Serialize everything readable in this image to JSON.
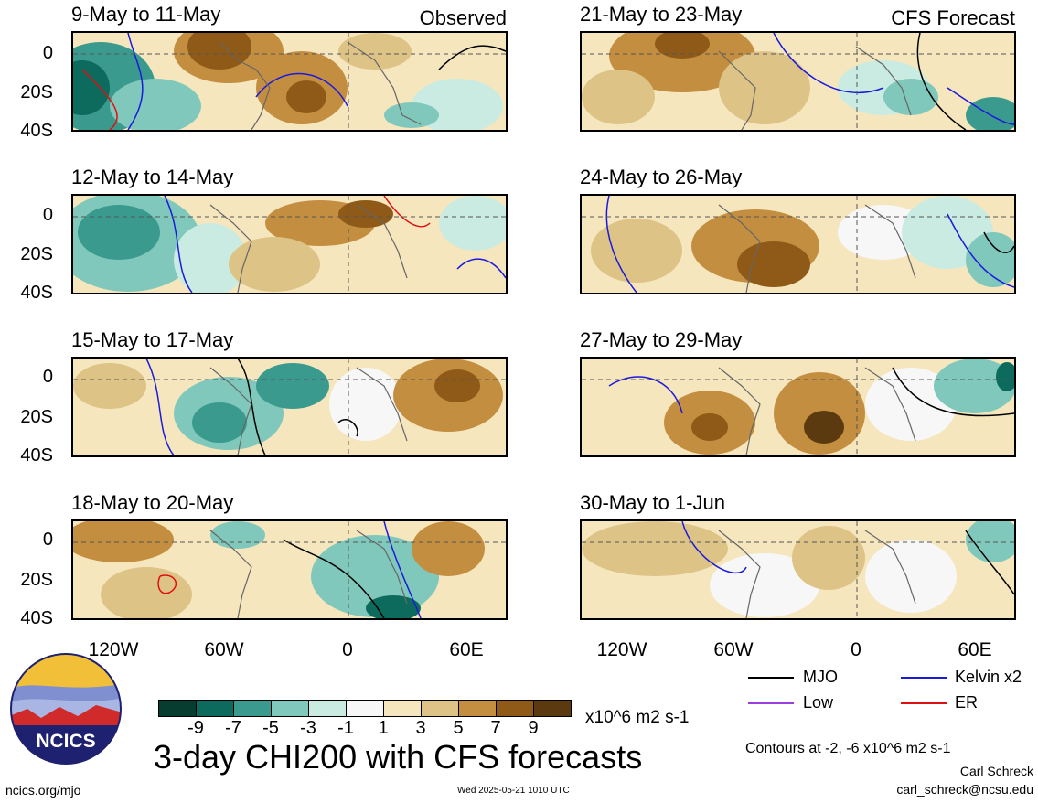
{
  "panels": [
    {
      "title": "9-May to 11-May",
      "tag": "Observed"
    },
    {
      "title": "21-May to 23-May",
      "tag": "CFS Forecast"
    },
    {
      "title": "12-May to 14-May",
      "tag": ""
    },
    {
      "title": "24-May to 26-May",
      "tag": ""
    },
    {
      "title": "15-May to 17-May",
      "tag": ""
    },
    {
      "title": "27-May to 29-May",
      "tag": ""
    },
    {
      "title": "18-May to 20-May",
      "tag": ""
    },
    {
      "title": "30-May to 1-Jun",
      "tag": ""
    }
  ],
  "lat_labels": [
    "0",
    "20S",
    "40S"
  ],
  "lon_labels": [
    "120W",
    "60W",
    "0",
    "60E"
  ],
  "colorbar": {
    "colors": [
      "#063d30",
      "#0d6b5e",
      "#3a9a8d",
      "#7fc8bb",
      "#c9ebe2",
      "#f7f7f7",
      "#f5e6be",
      "#dec386",
      "#c48e40",
      "#8f5a17",
      "#5b3a10"
    ],
    "labels": [
      "-9",
      "-7",
      "-5",
      "-3",
      "-1",
      "1",
      "3",
      "5",
      "7",
      "9"
    ],
    "units": "x10^6 m2 s-1"
  },
  "legend": [
    {
      "label": "MJO",
      "color": "#000000"
    },
    {
      "label": "Kelvin x2",
      "color": "#1a1adc"
    },
    {
      "label": "Low",
      "color": "#9b3ee0"
    },
    {
      "label": "ER",
      "color": "#e01010"
    }
  ],
  "contours_note": "Contours at -2, -6 x10^6 m2 s-1",
  "title": "3-day CHI200 with CFS forecasts",
  "logo_text": "NCICS",
  "footer": {
    "url": "ncics.org/mjo",
    "timestamp": "Wed 2025-05-21 1010 UTC",
    "author": "Carl Schreck",
    "email": "carl_schreck@ncsu.edu"
  }
}
